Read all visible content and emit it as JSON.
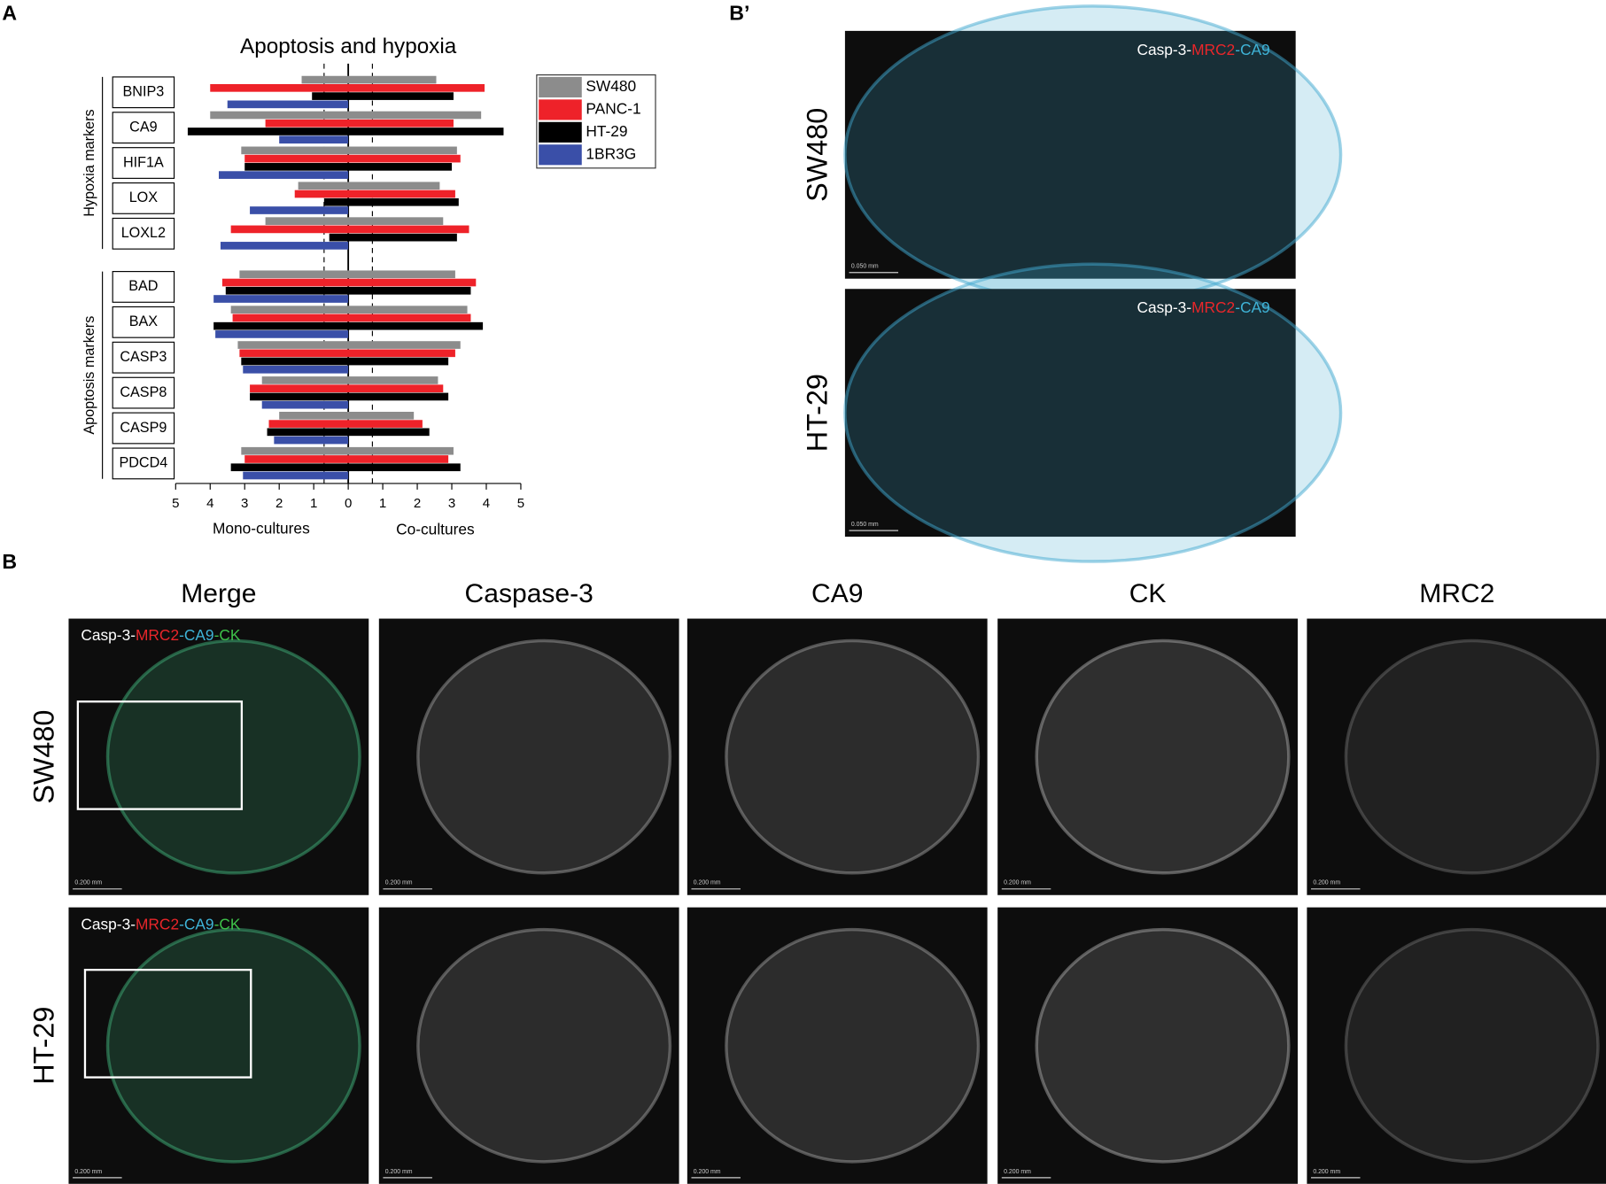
{
  "chart_data": {
    "type": "butterfly-bar",
    "title": "Apoptosis and hypoxia",
    "groups": [
      {
        "label": "Hypoxia markers",
        "categories": [
          "BNIP3",
          "CA9",
          "HIF1A",
          "LOX",
          "LOXL2"
        ]
      },
      {
        "label": "Apoptosis markers",
        "categories": [
          "BAD",
          "BAX",
          "CASP3",
          "CASP8",
          "CASP9",
          "PDCD4"
        ]
      }
    ],
    "x_left": {
      "label": "Mono-cultures",
      "lim": [
        0,
        5
      ],
      "ticks": [
        5,
        4,
        3,
        2,
        1
      ],
      "reversed": true
    },
    "x_right": {
      "label": "Co-cultures",
      "lim": [
        0,
        5
      ],
      "ticks": [
        0,
        1,
        2,
        3,
        4,
        5
      ]
    },
    "cutoff": 0.7,
    "legend": "right",
    "series": [
      {
        "name": "SW480",
        "color": "#8c8c8c",
        "mono": [
          1.35,
          4.0,
          3.1,
          1.45,
          2.4,
          3.15,
          3.4,
          3.2,
          2.5,
          2.0,
          3.1
        ],
        "co": [
          2.55,
          3.85,
          3.15,
          2.65,
          2.75,
          3.1,
          3.45,
          3.25,
          2.6,
          1.9,
          3.05
        ]
      },
      {
        "name": "PANC-1",
        "color": "#ee2229",
        "mono": [
          4.0,
          2.4,
          3.0,
          1.55,
          3.4,
          3.65,
          3.35,
          3.15,
          2.85,
          2.3,
          3.0
        ],
        "co": [
          3.95,
          3.05,
          3.25,
          3.1,
          3.5,
          3.7,
          3.55,
          3.1,
          2.75,
          2.15,
          2.9
        ]
      },
      {
        "name": "HT-29",
        "color": "#000000",
        "mono": [
          1.05,
          4.65,
          3.0,
          0.7,
          0.55,
          3.55,
          3.9,
          3.1,
          2.85,
          2.35,
          3.4
        ],
        "co": [
          3.05,
          4.5,
          3.0,
          3.2,
          3.15,
          3.55,
          3.9,
          2.9,
          2.9,
          2.35,
          3.25
        ]
      },
      {
        "name": "1BR3G",
        "color": "#3a4fa8",
        "mono": [
          3.5,
          2.0,
          3.75,
          2.85,
          3.7,
          3.9,
          3.85,
          3.05,
          2.5,
          2.15,
          3.05
        ],
        "co": [
          0,
          0,
          0,
          0,
          0,
          0,
          0,
          0,
          0,
          0,
          0
        ]
      }
    ]
  },
  "panel_labels": {
    "a": "A",
    "b_prime": "B’",
    "b": "B"
  },
  "b_prime": {
    "scale": "0.050 mm",
    "rows": [
      {
        "label": "SW480",
        "overlay": [
          {
            "text": "Casp-3-",
            "color": "#ffffff"
          },
          {
            "text": "MRC2",
            "color": "#e8262a"
          },
          {
            "text": "-CA9",
            "color": "#3fb4d8"
          }
        ]
      },
      {
        "label": "HT-29",
        "overlay": [
          {
            "text": "Casp-3-",
            "color": "#ffffff"
          },
          {
            "text": "MRC2",
            "color": "#e8262a"
          },
          {
            "text": "-CA9",
            "color": "#3fb4d8"
          }
        ]
      }
    ]
  },
  "b": {
    "scale": "0.200 mm",
    "columns": [
      "Merge",
      "Caspase-3",
      "CA9",
      "CK",
      "MRC2"
    ],
    "rows": [
      {
        "label": "SW480",
        "overlay": [
          {
            "text": "Casp-3-",
            "color": "#ffffff"
          },
          {
            "text": "MRC2",
            "color": "#e8262a"
          },
          {
            "text": "-CA9",
            "color": "#3fb4d8"
          },
          {
            "text": "-CK",
            "color": "#3ec24a"
          }
        ]
      },
      {
        "label": "HT-29",
        "overlay": [
          {
            "text": "Casp-3-",
            "color": "#ffffff"
          },
          {
            "text": "MRC2",
            "color": "#e8262a"
          },
          {
            "text": "-CA9",
            "color": "#3fb4d8"
          },
          {
            "text": "-CK",
            "color": "#3ec24a"
          }
        ]
      }
    ]
  }
}
